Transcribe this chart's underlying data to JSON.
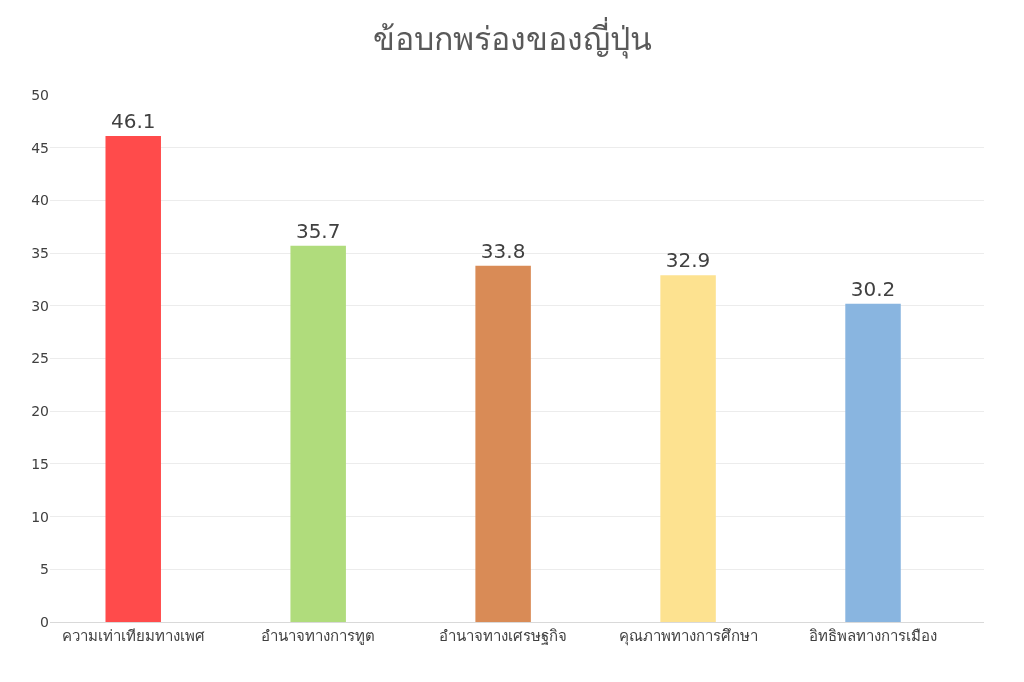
{
  "chart_data": {
    "type": "bar",
    "title": "ข้อบกพร่องของญี่ปุ่น",
    "categories": [
      "ความเท่าเทียมทางเพศ",
      "อำนาจทางการทูต",
      "อำนาจทางเศรษฐกิจ",
      "คุณภาพทางการศึกษา",
      "อิทธิพลทางการเมือง"
    ],
    "values": [
      46.1,
      35.7,
      33.8,
      32.9,
      30.2
    ],
    "colors": [
      "#ff4b4b",
      "#b0dc7c",
      "#d98b56",
      "#fde290",
      "#89b5e0"
    ],
    "ylim": [
      0,
      50
    ],
    "yticks": [
      0,
      5,
      10,
      15,
      20,
      25,
      30,
      35,
      40,
      45,
      50
    ],
    "grid": "y",
    "data_labels": true
  }
}
